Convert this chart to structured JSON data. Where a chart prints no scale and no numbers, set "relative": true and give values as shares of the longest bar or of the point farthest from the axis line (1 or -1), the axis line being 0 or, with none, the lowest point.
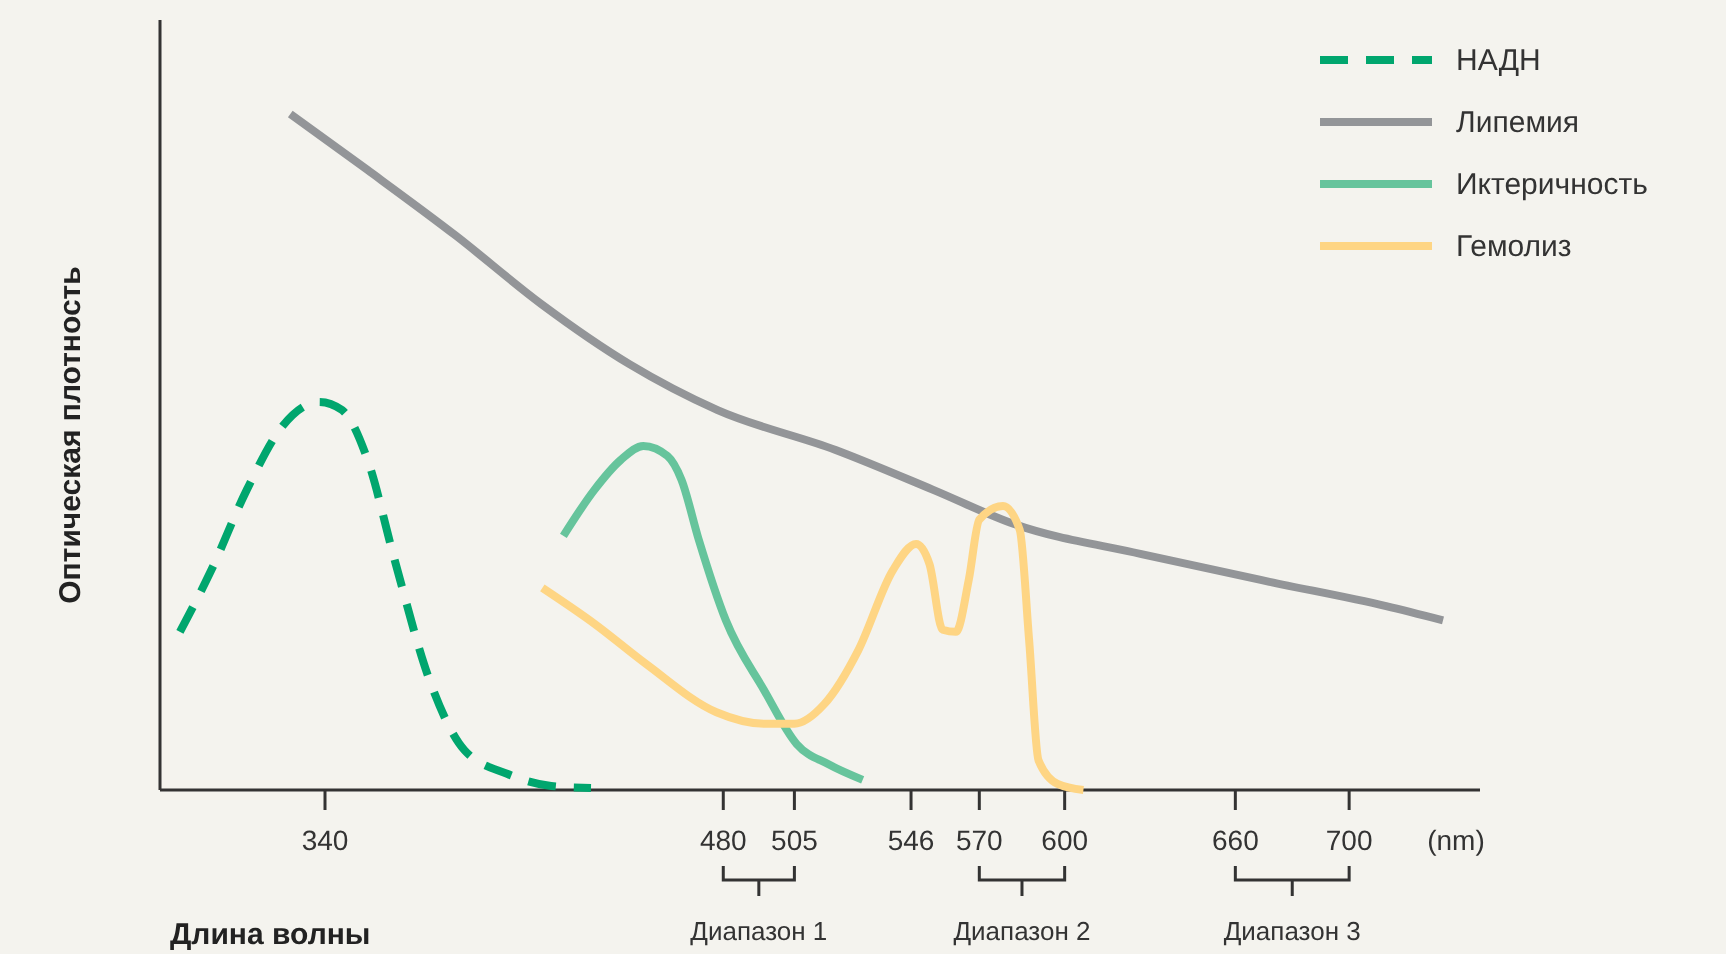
{
  "chart_data": {
    "type": "line",
    "relative": true,
    "xlabel": "Длина волны",
    "ylabel": "Оптическая плотность",
    "xlim": [
      282,
      746
    ],
    "xticks": [
      340,
      480,
      505,
      546,
      570,
      600,
      660,
      700
    ],
    "annotations": [
      "(nm)",
      "Диапазон 1",
      "Диапазон 2",
      "Диапазон 3"
    ],
    "legend": "top right",
    "grid": false,
    "marker": "none",
    "series": [
      {
        "name": "НАДН",
        "color": "#00a66e",
        "line_style": "dashed",
        "x": [
          289,
          300,
          312.5,
          325,
          338,
          346,
          355,
          364.5,
          376.7,
          389,
          404,
          419.5,
          433.5
        ],
        "values": [
          0.234,
          0.325,
          0.444,
          0.538,
          0.574,
          0.562,
          0.488,
          0.34,
          0.163,
          0.059,
          0.024,
          0.006,
          0.003
        ]
      },
      {
        "name": "Липемия",
        "color": "#939598",
        "line_style": "solid",
        "x": [
          327.8,
          355,
          386,
          416,
          447,
          478,
          519.5,
          553.8,
          582.5,
          627,
          672,
          713,
          733
        ],
        "values": [
          1.0,
          0.917,
          0.82,
          0.719,
          0.63,
          0.562,
          0.503,
          0.444,
          0.393,
          0.349,
          0.308,
          0.272,
          0.251
        ]
      },
      {
        "name": "Иктеричность",
        "color": "#66c49c",
        "line_style": "solid",
        "x": [
          423.8,
          434.7,
          443.9,
          451.9,
          460.4,
          465.3,
          471.4,
          480.9,
          494.3,
          505.8,
          517,
          529
        ],
        "values": [
          0.376,
          0.444,
          0.488,
          0.509,
          0.494,
          0.459,
          0.37,
          0.251,
          0.148,
          0.068,
          0.038,
          0.015
        ]
      },
      {
        "name": "Гемолиз",
        "color": "#fed584",
        "line_style": "solid",
        "x": [
          416.4,
          434.7,
          453,
          477.6,
          494.3,
          505,
          515.5,
          527.5,
          539.6,
          547.8,
          552.5,
          557.1,
          561.8,
          566.3,
          570,
          578.3,
          584.2,
          587.5,
          590.8,
          597.5,
          606.6
        ],
        "values": [
          0.299,
          0.246,
          0.186,
          0.115,
          0.098,
          0.098,
          0.127,
          0.207,
          0.325,
          0.364,
          0.334,
          0.237,
          0.234,
          0.311,
          0.4,
          0.42,
          0.385,
          0.222,
          0.044,
          0.009,
          0
        ]
      }
    ]
  }
}
